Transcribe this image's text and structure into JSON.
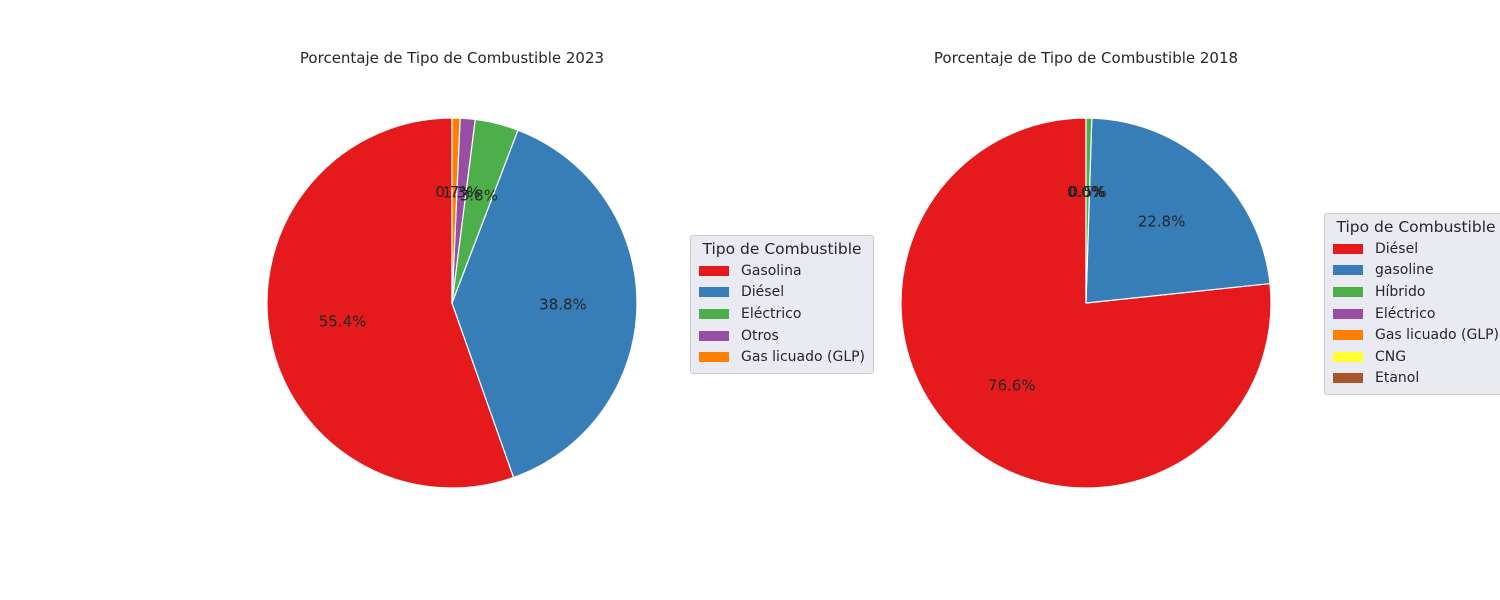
{
  "chart_data": [
    {
      "type": "pie",
      "title": "Porcentaje de Tipo de Combustible 2023",
      "legend_title": "Tipo de Combustible",
      "legend_position": "right",
      "start_angle": 90,
      "direction": "counterclockwise",
      "slices": [
        {
          "label": "Gasolina",
          "value": 55.4,
          "color": "#e41a1c",
          "pct_label": "55.4%"
        },
        {
          "label": "Diésel",
          "value": 38.8,
          "color": "#377eb8",
          "pct_label": "38.8%"
        },
        {
          "label": "Eléctrico",
          "value": 3.8,
          "color": "#4daf4a",
          "pct_label": "3.8%"
        },
        {
          "label": "Otros",
          "value": 1.3,
          "color": "#984ea3",
          "pct_label": "1.3%"
        },
        {
          "label": "Gas licuado (GLP)",
          "value": 0.7,
          "color": "#ff7f00",
          "pct_label": "0.7%"
        }
      ]
    },
    {
      "type": "pie",
      "title": "Porcentaje de Tipo de Combustible 2018",
      "legend_title": "Tipo de Combustible",
      "legend_position": "right",
      "start_angle": 90,
      "direction": "counterclockwise",
      "slices": [
        {
          "label": "Diésel",
          "value": 76.6,
          "color": "#e41a1c",
          "pct_label": "76.6%"
        },
        {
          "label": "gasoline",
          "value": 22.8,
          "color": "#377eb8",
          "pct_label": "22.8%"
        },
        {
          "label": "Híbrido",
          "value": 0.5,
          "color": "#4daf4a",
          "pct_label": "0.5%"
        },
        {
          "label": "Eléctrico",
          "value": 0.0,
          "color": "#984ea3",
          "pct_label": "0.0%"
        },
        {
          "label": "Gas licuado (GLP)",
          "value": 0.0,
          "color": "#ff7f00",
          "pct_label": "0.0%"
        },
        {
          "label": "CNG",
          "value": 0.0,
          "color": "#ffff33",
          "pct_label": "0.0%"
        },
        {
          "label": "Etanol",
          "value": 0.0,
          "color": "#a65628",
          "pct_label": "0.0%"
        }
      ]
    }
  ]
}
